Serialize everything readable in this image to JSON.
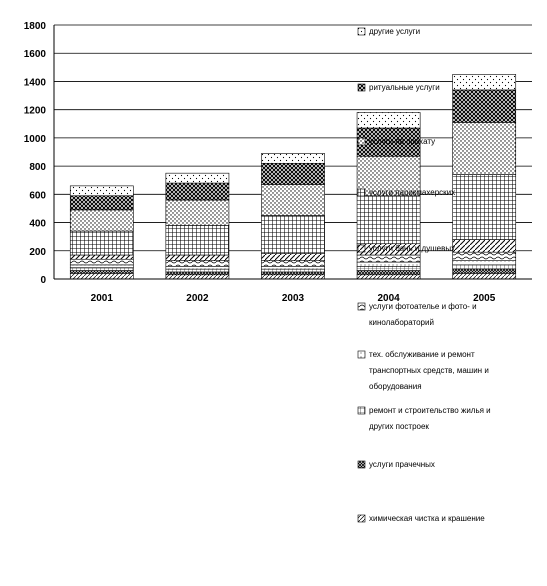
{
  "chart_data": {
    "type": "bar",
    "stacked": true,
    "categories": [
      "2001",
      "2002",
      "2003",
      "2004",
      "2005"
    ],
    "ylim": [
      0,
      1800
    ],
    "yticks": [
      0,
      200,
      400,
      600,
      800,
      1000,
      1200,
      1400,
      1600,
      1800
    ],
    "grid": true,
    "legend_position": "right",
    "series": [
      {
        "name": "химическая чистка и крашение",
        "pattern": "hatch-fine",
        "values": [
          40,
          30,
          30,
          30,
          40
        ]
      },
      {
        "name": "услуги прачечных",
        "pattern": "crosshatch-dense",
        "values": [
          20,
          20,
          20,
          30,
          30
        ]
      },
      {
        "name": "ремонт и строительство жилья и других построек",
        "pattern": "grid",
        "values": [
          20,
          20,
          20,
          30,
          30
        ]
      },
      {
        "name": "тех. обслуживание и ремонт транспортных средств, машин и оборудования",
        "pattern": "dots-light",
        "values": [
          20,
          20,
          20,
          30,
          30
        ]
      },
      {
        "name": "услуги фотоателье и фото- и кинолабораторий",
        "pattern": "wavy",
        "values": [
          40,
          40,
          40,
          50,
          60
        ]
      },
      {
        "name": "услуги бань и душевых",
        "pattern": "diag",
        "values": [
          30,
          40,
          50,
          80,
          90
        ]
      },
      {
        "name": "услуги парикмахерских",
        "pattern": "grid-heavy",
        "values": [
          170,
          210,
          270,
          340,
          460
        ]
      },
      {
        "name": "услуги по прокату",
        "pattern": "dots-heavy",
        "values": [
          150,
          180,
          220,
          280,
          370
        ]
      },
      {
        "name": "ритуальные услуги",
        "pattern": "diag-cross",
        "values": [
          100,
          120,
          150,
          200,
          230
        ]
      },
      {
        "name": "другие услуги",
        "pattern": "dots-sparse",
        "values": [
          70,
          70,
          70,
          110,
          110
        ]
      }
    ]
  },
  "colors": {
    "background": "#ffffff",
    "axis": "#000000",
    "grid": "#000000",
    "bar_outline": "#000000"
  }
}
